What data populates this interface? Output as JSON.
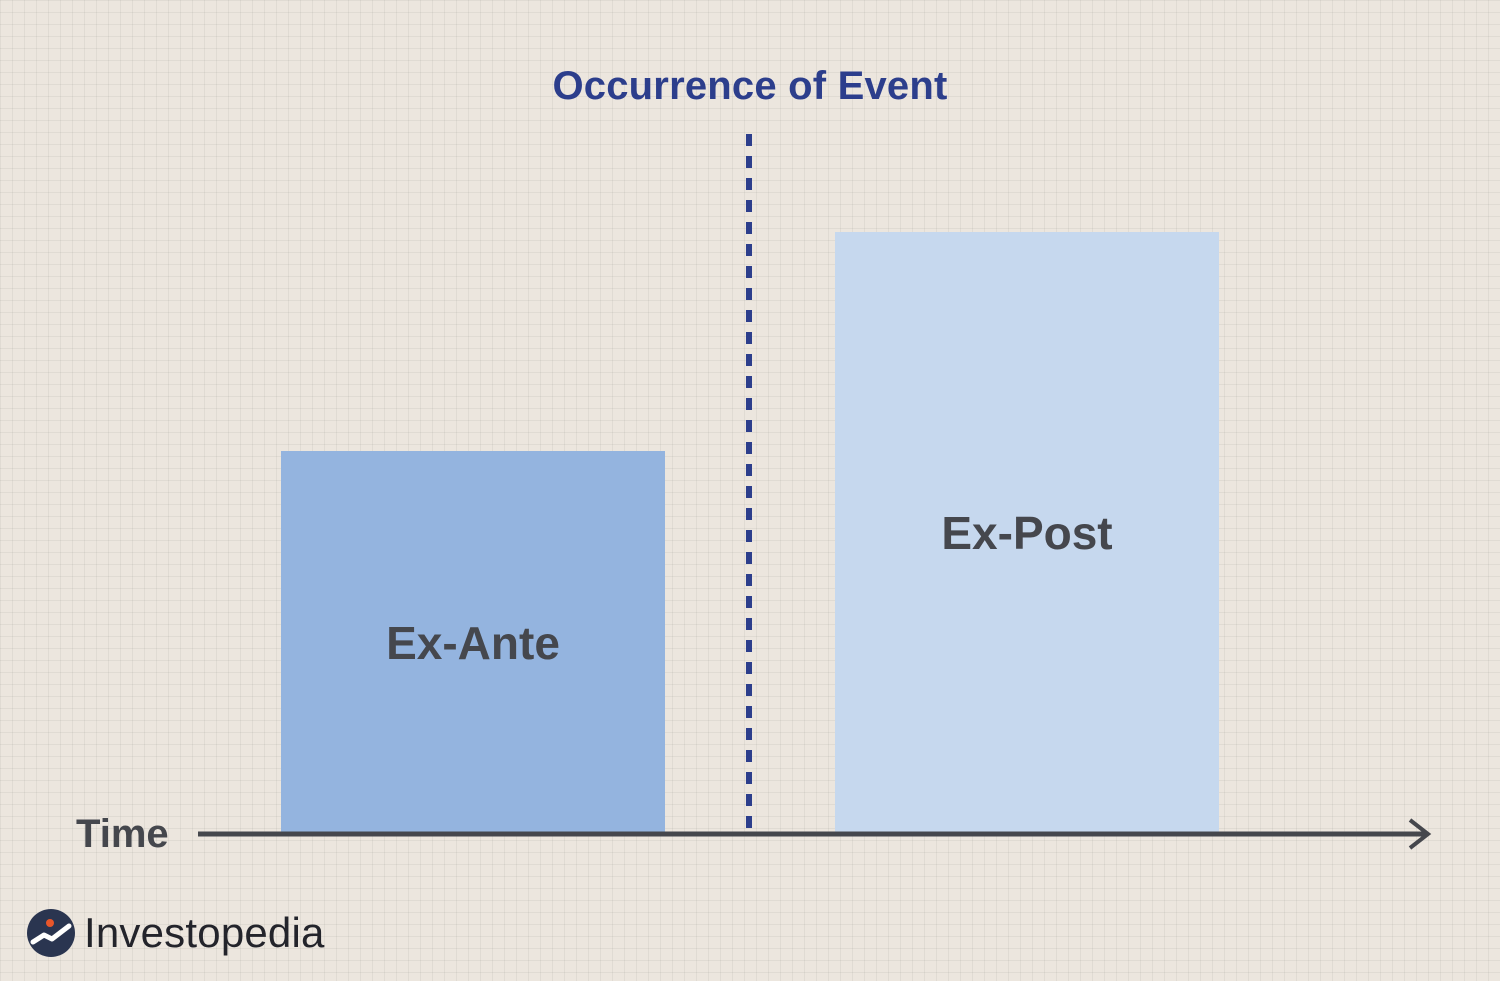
{
  "title": "Occurrence of Event",
  "bars": {
    "ante": {
      "label": "Ex-Ante"
    },
    "post": {
      "label": "Ex-Post"
    }
  },
  "axis": {
    "label": "Time"
  },
  "brand": {
    "name": "Investopedia",
    "logo_icon": "investopedia-logo-icon"
  },
  "colors": {
    "background": "#ece6de",
    "event_line": "#2c3e8c",
    "ante_bar": "#94b4df",
    "post_bar": "#c6d8ee",
    "text": "#45474d",
    "logo_accent": "#e8562a"
  }
}
